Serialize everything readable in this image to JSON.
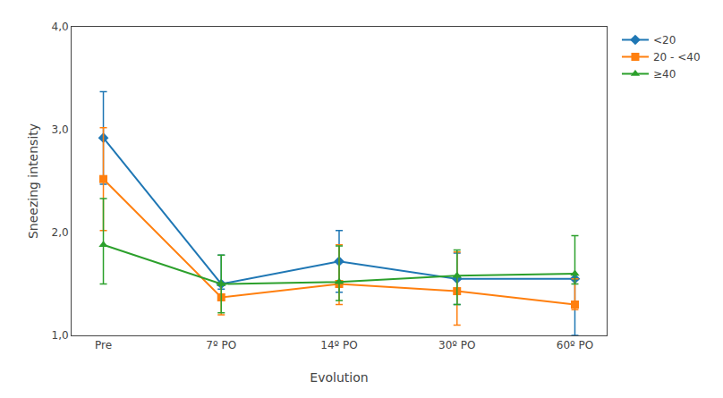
{
  "chart_data": {
    "type": "line",
    "xlabel": "Evolution",
    "ylabel": "Sneezing intensity",
    "categories": [
      "Pre",
      "7º PO",
      "14º PO",
      "30º PO",
      "60º PO"
    ],
    "series": [
      {
        "name": "<20",
        "marker": "diamond",
        "values": [
          2.92,
          1.5,
          1.72,
          1.55,
          1.55
        ],
        "error_upper": [
          0.45,
          0.28,
          0.3,
          0.25,
          0.0
        ],
        "error_lower": [
          0.45,
          0.05,
          0.3,
          0.25,
          0.55
        ]
      },
      {
        "name": "20 - <40",
        "marker": "square",
        "values": [
          2.52,
          1.37,
          1.5,
          1.43,
          1.3
        ],
        "error_upper": [
          0.5,
          0.13,
          0.38,
          0.38,
          0.25
        ],
        "error_lower": [
          0.5,
          0.17,
          0.2,
          0.33,
          0.05
        ]
      },
      {
        "name": "≥40",
        "marker": "triangle-up",
        "values": [
          1.88,
          1.5,
          1.52,
          1.58,
          1.6
        ],
        "error_upper": [
          0.45,
          0.28,
          0.35,
          0.25,
          0.37
        ],
        "error_lower": [
          0.38,
          0.28,
          0.18,
          0.28,
          0.1
        ]
      }
    ],
    "ylim": [
      1.0,
      4.0
    ],
    "yticks": [
      {
        "value": 1.0,
        "label": "1,0"
      },
      {
        "value": 2.0,
        "label": "2,0"
      },
      {
        "value": 3.0,
        "label": "3,0"
      },
      {
        "value": 4.0,
        "label": "4,0"
      }
    ],
    "grid": false,
    "legend": "right"
  }
}
